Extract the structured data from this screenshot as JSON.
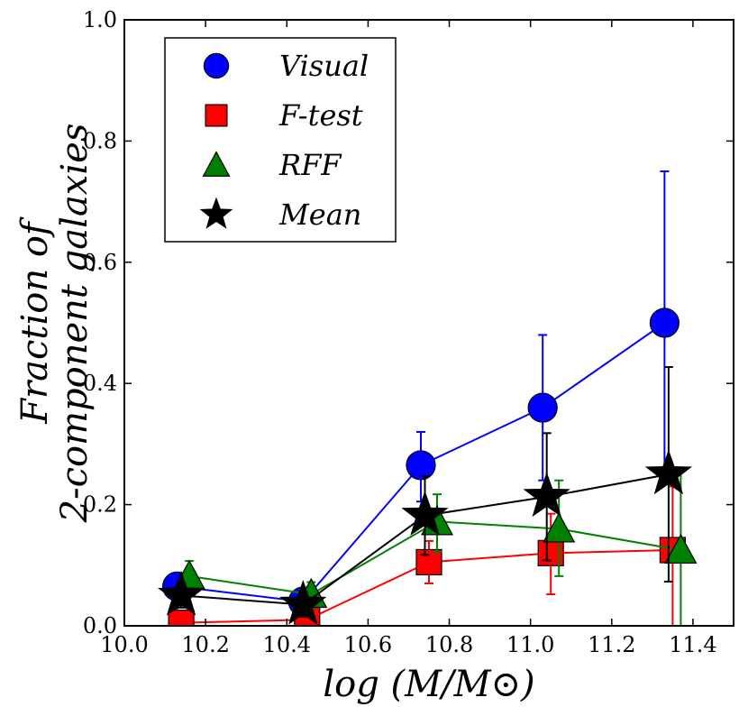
{
  "chart_data": {
    "type": "scatter",
    "xlabel": "log (M/M⊙)",
    "ylabel_lines": [
      "Fraction of",
      "2-component galaxies"
    ],
    "xlim": [
      10.0,
      11.5
    ],
    "ylim": [
      0.0,
      1.0
    ],
    "xticks": [
      10.0,
      10.2,
      10.4,
      10.6,
      10.8,
      11.0,
      11.2,
      11.4
    ],
    "xtick_labels": [
      "10.0",
      "10.2",
      "10.4",
      "10.6",
      "10.8",
      "11.0",
      "11.2",
      "11.4"
    ],
    "yticks": [
      0.0,
      0.2,
      0.4,
      0.6,
      0.8,
      1.0
    ],
    "ytick_labels": [
      "0.0",
      "0.2",
      "0.4",
      "0.6",
      "0.8",
      "1.0"
    ],
    "legend_position": "top-left",
    "series": [
      {
        "name": "Visual",
        "marker": "circle",
        "color": "#0000ff",
        "x": [
          10.13,
          10.44,
          10.73,
          11.03,
          11.33
        ],
        "y": [
          0.065,
          0.04,
          0.265,
          0.36,
          0.5
        ],
        "err_low": [
          0.065,
          0.04,
          0.06,
          0.12,
          0.25
        ],
        "err_high": [
          0.0,
          0.0,
          0.055,
          0.12,
          0.25
        ]
      },
      {
        "name": "F-test",
        "marker": "square",
        "color": "#ff0000",
        "x": [
          10.14,
          10.45,
          10.75,
          11.05,
          11.35
        ],
        "y": [
          0.005,
          0.01,
          0.105,
          0.12,
          0.125
        ],
        "err_low": [
          0.005,
          0.01,
          0.035,
          0.068,
          0.125
        ],
        "err_high": [
          0.0,
          0.0,
          0.035,
          0.065,
          0.105
        ]
      },
      {
        "name": "RFF",
        "marker": "triangle",
        "color": "#008000",
        "x": [
          10.16,
          10.46,
          10.77,
          11.07,
          11.37
        ],
        "y": [
          0.082,
          0.052,
          0.172,
          0.16,
          0.125
        ],
        "err_low": [
          0.03,
          0.025,
          0.05,
          0.078,
          0.125
        ],
        "err_high": [
          0.025,
          0.02,
          0.045,
          0.08,
          0.13
        ]
      },
      {
        "name": "Mean",
        "marker": "star",
        "color": "#000000",
        "x": [
          10.14,
          10.44,
          10.74,
          11.04,
          11.34
        ],
        "y": [
          0.05,
          0.035,
          0.182,
          0.213,
          0.25
        ],
        "err_low": [
          0.02,
          0.02,
          0.065,
          0.105,
          0.177
        ],
        "err_high": [
          0.02,
          0.02,
          0.065,
          0.105,
          0.177
        ]
      }
    ]
  }
}
